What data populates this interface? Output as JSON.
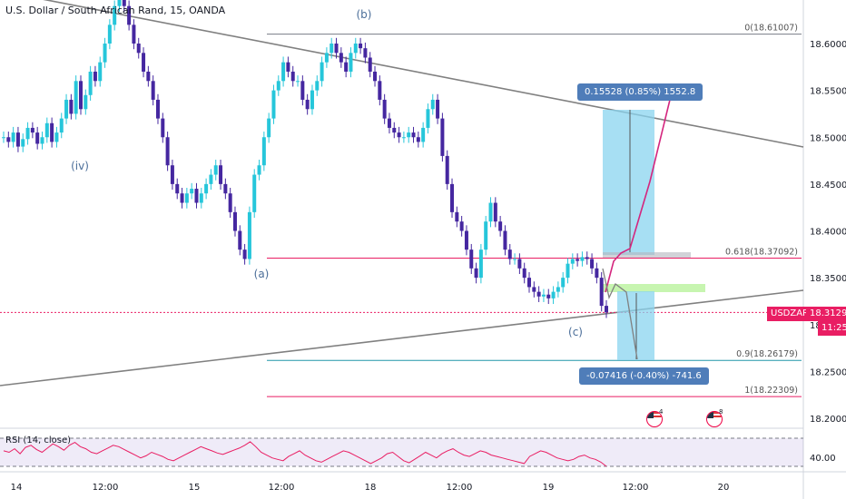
{
  "header": {
    "title": "U.S. Dollar / South African Rand, 15, OANDA"
  },
  "chart_data": {
    "type": "candlestick",
    "title": "U.S. Dollar / South African Rand, 15, OANDA",
    "y_ticks": [
      "18.60000",
      "18.55000",
      "18.50000",
      "18.45000",
      "18.40000",
      "18.35000",
      "18.30000",
      "18.25000",
      "18.20000"
    ],
    "y_tick_values": [
      18.6,
      18.55,
      18.5,
      18.45,
      18.4,
      18.35,
      18.3,
      18.25,
      18.2
    ],
    "x_ticks": [
      "14",
      "12:00",
      "15",
      "12:00",
      "18",
      "12:00",
      "19",
      "12:00",
      "20"
    ],
    "ylim": [
      18.16,
      18.66
    ],
    "close_price": {
      "label": "USDZAR",
      "value": "18.31290",
      "time_left": "11:25"
    },
    "fib_levels": [
      {
        "label": "0(18.61007)",
        "value": 18.61007,
        "color": "#787b86"
      },
      {
        "label": "0.618(18.37092)",
        "value": 18.37092,
        "color": "#e91e63"
      },
      {
        "label": "0.9(18.26179)",
        "value": 18.26179,
        "color": "#2196a8"
      },
      {
        "label": "1(18.22309)",
        "value": 18.22309,
        "color": "#e91e63"
      }
    ],
    "wave_labels": [
      "(b)",
      "(iv)",
      "(a)",
      "(c)"
    ],
    "long_position": {
      "label": "0.15528 (0.85%) 1552.8"
    },
    "short_position": {
      "label": "-0.07416 (-0.40%) -741.6"
    },
    "candles": [
      18.5,
      18.495,
      18.505,
      18.49,
      18.498,
      18.51,
      18.505,
      18.493,
      18.5,
      18.515,
      18.495,
      18.505,
      18.52,
      18.54,
      18.525,
      18.56,
      18.53,
      18.545,
      18.57,
      18.56,
      18.58,
      18.6,
      18.62,
      18.64,
      18.65,
      18.64,
      18.62,
      18.6,
      18.59,
      18.57,
      18.56,
      18.54,
      18.52,
      18.5,
      18.47,
      18.45,
      18.44,
      18.43,
      18.44,
      18.445,
      18.43,
      18.44,
      18.45,
      18.46,
      18.47,
      18.45,
      18.44,
      18.42,
      18.4,
      18.38,
      18.37,
      18.42,
      18.46,
      18.47,
      18.5,
      18.52,
      18.55,
      18.56,
      18.58,
      18.57,
      18.56,
      18.56,
      18.54,
      18.53,
      18.55,
      18.56,
      18.58,
      18.59,
      18.6,
      18.59,
      18.58,
      18.57,
      18.59,
      18.6,
      18.595,
      18.585,
      18.57,
      18.56,
      18.54,
      18.52,
      18.51,
      18.505,
      18.5,
      18.5,
      18.505,
      18.5,
      18.495,
      18.51,
      18.53,
      18.54,
      18.52,
      18.48,
      18.45,
      18.42,
      18.41,
      18.4,
      18.38,
      18.36,
      18.35,
      18.38,
      18.41,
      18.43,
      18.41,
      18.4,
      18.38,
      18.37,
      18.37,
      18.36,
      18.35,
      18.34,
      18.335,
      18.33,
      18.332,
      18.328,
      18.335,
      18.34,
      18.35,
      18.365,
      18.37,
      18.368,
      18.372,
      18.37,
      18.36,
      18.35,
      18.32,
      18.313
    ],
    "rsi": {
      "label": "RSI (14, close)",
      "y_tick": "40.00",
      "values": [
        52,
        50,
        55,
        48,
        57,
        60,
        54,
        50,
        56,
        62,
        58,
        53,
        60,
        64,
        58,
        55,
        50,
        48,
        52,
        56,
        60,
        58,
        54,
        50,
        46,
        42,
        45,
        50,
        47,
        44,
        40,
        38,
        42,
        46,
        50,
        54,
        58,
        55,
        52,
        49,
        47,
        50,
        53,
        56,
        60,
        65,
        58,
        50,
        46,
        42,
        40,
        38,
        44,
        48,
        52,
        46,
        42,
        38,
        36,
        40,
        44,
        48,
        52,
        50,
        46,
        42,
        38,
        34,
        38,
        42,
        48,
        50,
        44,
        38,
        35,
        40,
        45,
        50,
        46,
        42,
        48,
        52,
        55,
        50,
        46,
        44,
        48,
        52,
        50,
        46,
        44,
        42,
        40,
        38,
        36,
        34,
        44,
        48,
        52,
        50,
        46,
        42,
        40,
        38,
        40,
        44,
        46,
        42,
        40,
        36,
        30
      ]
    }
  }
}
